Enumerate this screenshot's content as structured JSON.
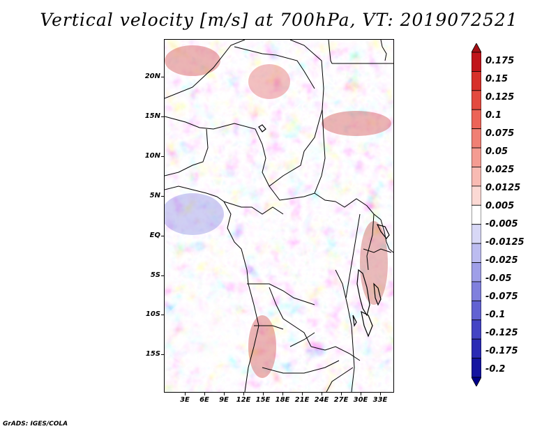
{
  "title": "Vertical velocity [m/s] at 700hPa, VT: 2019072521",
  "lat_labels": [
    "20N",
    "15N",
    "10N",
    "5N",
    "EQ",
    "5S",
    "10S",
    "15S"
  ],
  "lon_labels": [
    "3E",
    "6E",
    "9E",
    "12E",
    "15E",
    "18E",
    "21E",
    "24E",
    "27E",
    "30E",
    "33E"
  ],
  "colorbar": {
    "labels": [
      "0.175",
      "0.15",
      "0.125",
      "0.1",
      "0.075",
      "0.05",
      "0.025",
      "0.0125",
      "0.005",
      "-0.005",
      "-0.0125",
      "-0.025",
      "-0.05",
      "-0.075",
      "-0.1",
      "-0.125",
      "-0.175",
      "-0.2"
    ],
    "colors": [
      "#a50f15",
      "#c0141a",
      "#d7302a",
      "#e34a3f",
      "#ec6457",
      "#f08074",
      "#f49c92",
      "#f8bbb3",
      "#fbd9d4",
      "#ffffff",
      "#d8d8f6",
      "#bcbcf0",
      "#9f9fe8",
      "#8080dd",
      "#6262d2",
      "#4444c4",
      "#2a2ab4",
      "#1414a0",
      "#00008a"
    ]
  },
  "credit": "GrADS: IGES/COLA"
}
